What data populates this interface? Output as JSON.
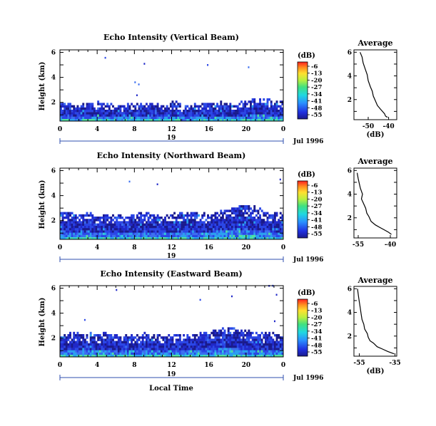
{
  "chart_data": [
    {
      "type": "heatmap",
      "title": "Echo Intensity (Vertical Beam)",
      "ylabel": "Height (km)",
      "xlabel": "",
      "xticks": [
        "0",
        "4",
        "8",
        "12",
        "16",
        "20",
        "0"
      ],
      "xlim": [
        0,
        24
      ],
      "yticks": [
        "2",
        "4",
        "6"
      ],
      "ylim": [
        0.5,
        6.2
      ],
      "date_day": "19",
      "date_month_year": "Jul 1996",
      "colorbar": {
        "unit": "(dB)",
        "ticks": [
          "-6",
          "-13",
          "-20",
          "-27",
          "-34",
          "-41",
          "-48",
          "-55"
        ]
      },
      "echo_top_km": [
        1.8,
        1.8,
        1.7,
        1.9,
        2.0,
        1.8,
        1.6,
        1.8,
        1.9,
        1.8,
        1.7,
        1.8,
        1.9,
        1.8,
        1.7,
        1.8,
        1.9,
        2.0,
        1.8,
        1.9,
        2.1,
        2.3,
        2.2,
        2.0
      ]
    },
    {
      "type": "line",
      "title": "Average",
      "xlabel": "(dB)",
      "xticks": [
        "-50",
        "-40"
      ],
      "xlim": [
        -57,
        -36
      ],
      "yticks": [
        "2",
        "4",
        "6"
      ],
      "ylim": [
        0.3,
        6.2
      ],
      "series": [
        {
          "x": [
            -54,
            -53,
            -52.5,
            -51.5,
            -50.5,
            -50,
            -49,
            -48,
            -47.5,
            -46.5,
            -45.5,
            -44,
            -43,
            -42,
            -41.5,
            -40.5
          ],
          "y": [
            6.0,
            5.6,
            5.1,
            4.6,
            4.1,
            3.6,
            3.1,
            2.7,
            2.3,
            1.9,
            1.5,
            1.2,
            1.0,
            0.8,
            0.6,
            0.5
          ]
        }
      ]
    },
    {
      "type": "heatmap",
      "title": "Echo Intensity (Northward Beam)",
      "ylabel": "Height (km)",
      "xlabel": "",
      "xticks": [
        "0",
        "4",
        "8",
        "12",
        "16",
        "20",
        "0"
      ],
      "xlim": [
        0,
        24
      ],
      "yticks": [
        "2",
        "4",
        "6"
      ],
      "ylim": [
        0.5,
        6.2
      ],
      "date_day": "19",
      "date_month_year": "Jul 1996",
      "colorbar": {
        "unit": "(dB)",
        "ticks": [
          "-6",
          "-13",
          "-20",
          "-27",
          "-34",
          "-41",
          "-48",
          "-55"
        ]
      },
      "echo_top_km": [
        2.5,
        2.6,
        2.4,
        2.5,
        2.3,
        2.4,
        2.5,
        2.3,
        2.4,
        2.5,
        2.4,
        2.3,
        2.4,
        2.5,
        2.6,
        2.5,
        2.4,
        2.6,
        2.8,
        3.0,
        3.2,
        2.9,
        2.6,
        2.5
      ]
    },
    {
      "type": "line",
      "title": "Average",
      "xlabel": "",
      "xticks": [
        "-55",
        "-40"
      ],
      "xlim": [
        -57,
        -37
      ],
      "yticks": [
        "2",
        "4",
        "6"
      ],
      "ylim": [
        0.3,
        6.2
      ],
      "series": [
        {
          "x": [
            -55.5,
            -55,
            -54.5,
            -54,
            -53,
            -53.5,
            -52.5,
            -51.5,
            -51,
            -50,
            -49,
            -47,
            -45,
            -43,
            -41,
            -39.5
          ],
          "y": [
            5.8,
            5.3,
            4.9,
            4.5,
            4.0,
            3.6,
            3.2,
            2.8,
            2.4,
            2.1,
            1.7,
            1.4,
            1.2,
            1.0,
            0.8,
            0.6
          ]
        }
      ]
    },
    {
      "type": "heatmap",
      "title": "Echo Intensity (Eastward Beam)",
      "ylabel": "Height (km)",
      "xlabel": "Local Time",
      "xticks": [
        "0",
        "4",
        "8",
        "12",
        "16",
        "20",
        "0"
      ],
      "xlim": [
        0,
        24
      ],
      "yticks": [
        "2",
        "4",
        "6"
      ],
      "ylim": [
        0.5,
        6.2
      ],
      "date_day": "19",
      "date_month_year": "Jul 1996",
      "colorbar": {
        "unit": "(dB)",
        "ticks": [
          "-6",
          "-13",
          "-20",
          "-27",
          "-34",
          "-41",
          "-48",
          "-55"
        ]
      },
      "echo_top_km": [
        2.2,
        2.3,
        2.2,
        2.3,
        2.2,
        2.3,
        2.2,
        2.1,
        2.2,
        2.3,
        2.2,
        2.1,
        2.2,
        2.3,
        2.2,
        2.3,
        2.4,
        2.6,
        2.8,
        2.6,
        2.5,
        2.4,
        2.3,
        2.3
      ]
    },
    {
      "type": "line",
      "title": "Average",
      "xlabel": "(dB)",
      "xticks": [
        "-55",
        "-35"
      ],
      "xlim": [
        -58,
        -34
      ],
      "yticks": [
        "2",
        "4",
        "6"
      ],
      "ylim": [
        0.3,
        6.2
      ],
      "series": [
        {
          "x": [
            -56,
            -55.5,
            -55,
            -54.5,
            -54,
            -53.5,
            -52.5,
            -52,
            -50.5,
            -50,
            -49,
            -47,
            -45,
            -42,
            -39,
            -35.5
          ],
          "y": [
            6.0,
            5.4,
            4.9,
            4.4,
            3.9,
            3.4,
            3.0,
            2.6,
            2.2,
            1.9,
            1.6,
            1.4,
            1.1,
            0.9,
            0.7,
            0.5
          ]
        }
      ]
    }
  ]
}
